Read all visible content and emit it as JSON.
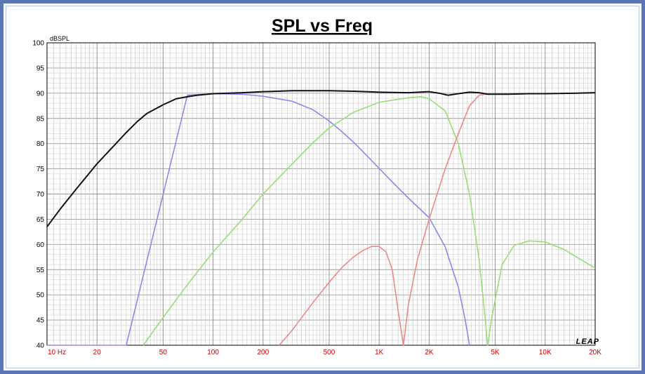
{
  "chart_data": {
    "type": "line",
    "title": "SPL vs Freq",
    "ylabel": "dBSPL",
    "xlabel": "",
    "xscale": "log",
    "xlim": [
      10,
      20000
    ],
    "ylim": [
      40,
      100
    ],
    "grid": true,
    "logo_text": "LEAP",
    "yticks": [
      "100",
      "95",
      "90",
      "85",
      "80",
      "75",
      "70",
      "65",
      "60",
      "55",
      "50",
      "45",
      "40"
    ],
    "xticks": [
      {
        "value": 10,
        "label": "10 Hz"
      },
      {
        "value": 20,
        "label": "20"
      },
      {
        "value": 50,
        "label": "50"
      },
      {
        "value": 100,
        "label": "100"
      },
      {
        "value": 200,
        "label": "200"
      },
      {
        "value": 500,
        "label": "500"
      },
      {
        "value": 1000,
        "label": "1K"
      },
      {
        "value": 2000,
        "label": "2K"
      },
      {
        "value": 5000,
        "label": "5K"
      },
      {
        "value": 10000,
        "label": "10K"
      },
      {
        "value": 20000,
        "label": "20K"
      }
    ],
    "series": [
      {
        "color": "#8a8aee",
        "points": [
          [
            10,
            40
          ],
          [
            18,
            40
          ],
          [
            20,
            40
          ],
          [
            24,
            40
          ],
          [
            28,
            40
          ],
          [
            30,
            40
          ],
          [
            70,
            89.6
          ],
          [
            100,
            89.9
          ],
          [
            150,
            89.8
          ],
          [
            200,
            89.4
          ],
          [
            300,
            88.4
          ],
          [
            400,
            86.7
          ],
          [
            500,
            84.5
          ],
          [
            600,
            82.3
          ],
          [
            700,
            80.3
          ],
          [
            800,
            78.4
          ],
          [
            1000,
            75.1
          ],
          [
            1200,
            72.4
          ],
          [
            1500,
            69.2
          ],
          [
            2000,
            65.3
          ],
          [
            2500,
            59.5
          ],
          [
            3000,
            51.5
          ],
          [
            3300,
            45
          ],
          [
            3500,
            40
          ]
        ]
      },
      {
        "color": "#99dd77",
        "points": [
          [
            38,
            40
          ],
          [
            50,
            45.5
          ],
          [
            70,
            52
          ],
          [
            100,
            58.5
          ],
          [
            150,
            65
          ],
          [
            200,
            70
          ],
          [
            300,
            76
          ],
          [
            400,
            80.2
          ],
          [
            500,
            83.1
          ],
          [
            700,
            86.2
          ],
          [
            1000,
            88.2
          ],
          [
            1500,
            89.1
          ],
          [
            1800,
            89.3
          ],
          [
            2000,
            88.9
          ],
          [
            2500,
            86.5
          ],
          [
            3000,
            80
          ],
          [
            3500,
            70
          ],
          [
            4000,
            57
          ],
          [
            4300,
            47
          ],
          [
            4500,
            40
          ],
          [
            4800,
            46
          ],
          [
            5500,
            56
          ],
          [
            6500,
            59.8
          ],
          [
            8000,
            60.7
          ],
          [
            10000,
            60.5
          ],
          [
            13000,
            59
          ],
          [
            16000,
            57.2
          ],
          [
            20000,
            55.3
          ]
        ]
      },
      {
        "color": "#ee8888",
        "points": [
          [
            250,
            40
          ],
          [
            300,
            43
          ],
          [
            400,
            48.5
          ],
          [
            500,
            52.5
          ],
          [
            600,
            55.5
          ],
          [
            700,
            57.5
          ],
          [
            800,
            58.8
          ],
          [
            900,
            59.6
          ],
          [
            1000,
            59.6
          ],
          [
            1100,
            58.5
          ],
          [
            1200,
            55
          ],
          [
            1300,
            47
          ],
          [
            1400,
            40
          ],
          [
            1500,
            48
          ],
          [
            1700,
            57
          ],
          [
            2000,
            65
          ],
          [
            2500,
            75
          ],
          [
            3000,
            82
          ],
          [
            3500,
            87.5
          ],
          [
            4000,
            89.6
          ],
          [
            4500,
            89.9
          ]
        ]
      },
      {
        "color": "#111111",
        "points": [
          [
            10,
            63.5
          ],
          [
            12,
            67
          ],
          [
            15,
            71
          ],
          [
            20,
            76
          ],
          [
            25,
            79.4
          ],
          [
            30,
            82.2
          ],
          [
            35,
            84.4
          ],
          [
            40,
            86
          ],
          [
            50,
            87.7
          ],
          [
            60,
            88.9
          ],
          [
            70,
            89.3
          ],
          [
            80,
            89.6
          ],
          [
            100,
            89.9
          ],
          [
            150,
            90.1
          ],
          [
            200,
            90.3
          ],
          [
            300,
            90.5
          ],
          [
            500,
            90.5
          ],
          [
            700,
            90.4
          ],
          [
            1000,
            90.2
          ],
          [
            1500,
            90.1
          ],
          [
            2000,
            90.3
          ],
          [
            2300,
            90
          ],
          [
            2600,
            89.6
          ],
          [
            3000,
            89.9
          ],
          [
            3500,
            90.2
          ],
          [
            4000,
            90.1
          ],
          [
            4500,
            89.8
          ],
          [
            6000,
            89.8
          ],
          [
            8000,
            89.9
          ],
          [
            10000,
            89.9
          ],
          [
            15000,
            90
          ],
          [
            20000,
            90.1
          ]
        ]
      }
    ]
  }
}
